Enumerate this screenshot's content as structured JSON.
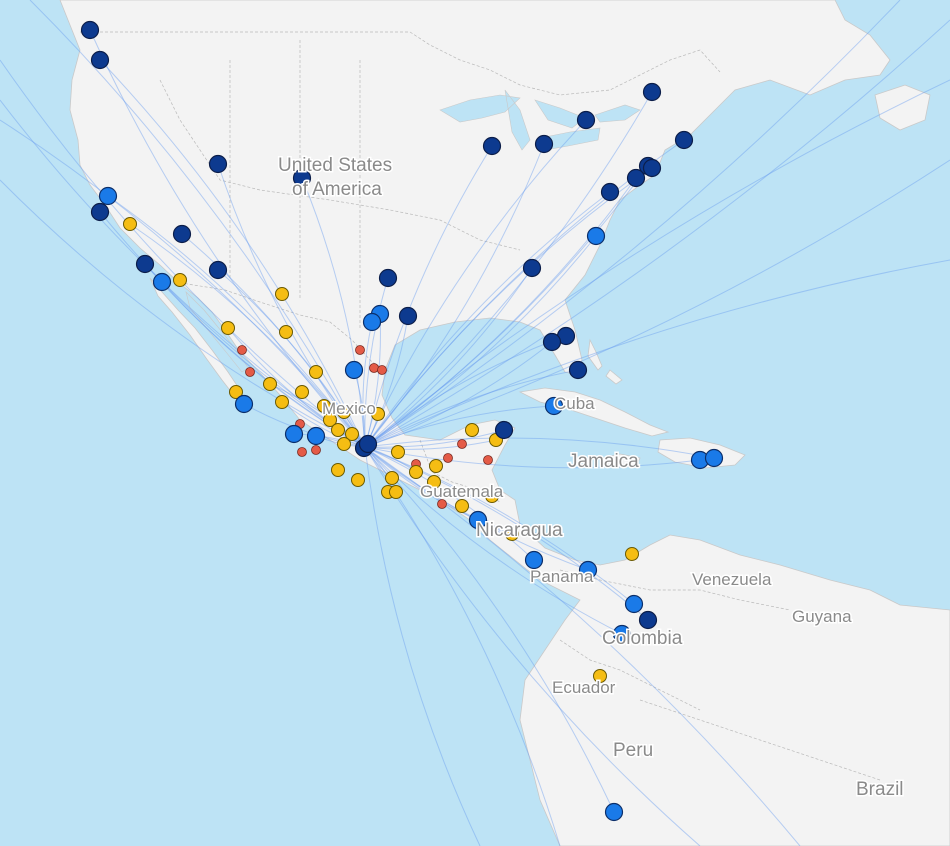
{
  "map": {
    "labels": {
      "usa_line1": "United States",
      "usa_line2": "of America",
      "mexico": "Mexico",
      "cuba": "Cuba",
      "jamaica": "Jamaica",
      "guatemala": "Guatemala",
      "nicaragua": "Nicaragua",
      "panama": "Panama",
      "venezuela": "Venezuela",
      "guyana": "Guyana",
      "colombia": "Colombia",
      "ecuador": "Ecuador",
      "peru": "Peru",
      "brazil": "Brazil"
    },
    "colors": {
      "ocean": "#bde3f5",
      "land": "#f3f3f3",
      "route": "#6a9ef0",
      "marker_dark": "#0d3a8f",
      "marker_light": "#1a7ae8",
      "marker_yellow": "#f5bd13",
      "marker_red": "#e45b47"
    }
  }
}
